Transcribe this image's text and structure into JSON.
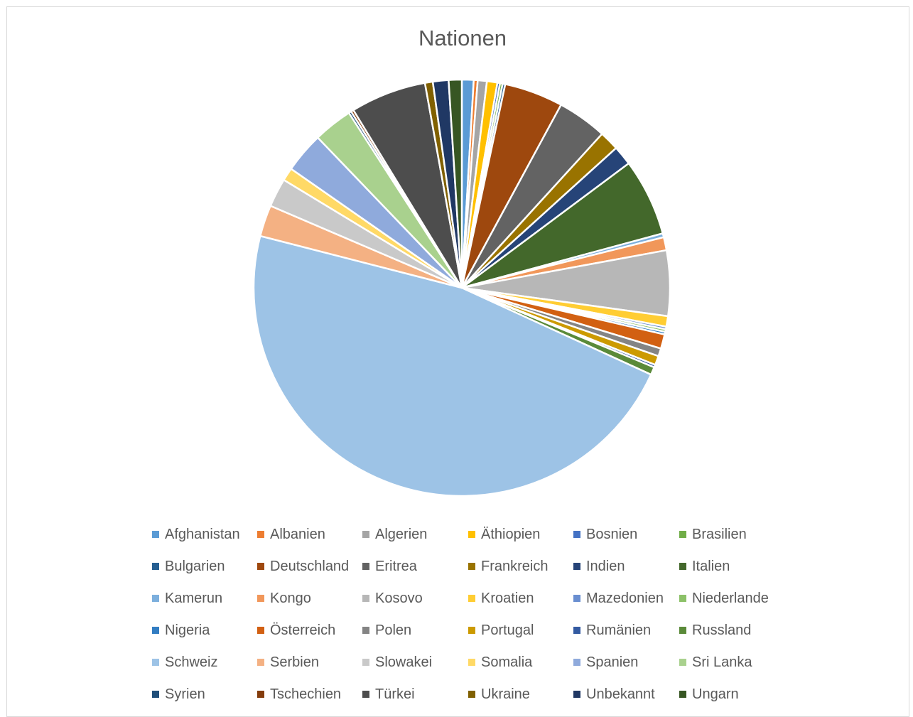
{
  "chart_data": {
    "type": "pie",
    "title": "Nationen",
    "legend_position": "bottom",
    "start_angle_deg": 0,
    "direction": "clockwise",
    "slices": [
      {
        "name": "Afghanistan",
        "value": 0.9,
        "color": "#5b9bd5"
      },
      {
        "name": "Albanien",
        "value": 0.3,
        "color": "#ed7d31"
      },
      {
        "name": "Algerien",
        "value": 0.7,
        "color": "#a5a5a5"
      },
      {
        "name": "Äthiopien",
        "value": 0.8,
        "color": "#ffc000"
      },
      {
        "name": "Bosnien",
        "value": 0.2,
        "color": "#4472c4"
      },
      {
        "name": "Brasilien",
        "value": 0.2,
        "color": "#70ad47"
      },
      {
        "name": "Bulgarien",
        "value": 0.2,
        "color": "#255e91"
      },
      {
        "name": "Deutschland",
        "value": 4.5,
        "color": "#9e480e"
      },
      {
        "name": "Eritrea",
        "value": 3.8,
        "color": "#636363"
      },
      {
        "name": "Frankreich",
        "value": 1.5,
        "color": "#997300"
      },
      {
        "name": "Indien",
        "value": 1.5,
        "color": "#264478"
      },
      {
        "name": "Italien",
        "value": 5.9,
        "color": "#43682b"
      },
      {
        "name": "Kamerun",
        "value": 0.3,
        "color": "#7cafdd"
      },
      {
        "name": "Kongo",
        "value": 1.0,
        "color": "#f1975a"
      },
      {
        "name": "Kosovo",
        "value": 5.0,
        "color": "#b7b7b7"
      },
      {
        "name": "Kroatien",
        "value": 0.8,
        "color": "#ffcd33"
      },
      {
        "name": "Mazedonien",
        "value": 0.2,
        "color": "#698ed0"
      },
      {
        "name": "Niederlande",
        "value": 0.2,
        "color": "#8cc168"
      },
      {
        "name": "Nigeria",
        "value": 0.2,
        "color": "#327dc2"
      },
      {
        "name": "Österreich",
        "value": 1.1,
        "color": "#d26012"
      },
      {
        "name": "Polen",
        "value": 0.6,
        "color": "#848484"
      },
      {
        "name": "Portugal",
        "value": 0.7,
        "color": "#cc9a00"
      },
      {
        "name": "Rumänien",
        "value": 0.2,
        "color": "#335aa1"
      },
      {
        "name": "Russland",
        "value": 0.6,
        "color": "#5a8a39"
      },
      {
        "name": "Schweiz",
        "value": 46.5,
        "color": "#9dc3e6"
      },
      {
        "name": "Serbien",
        "value": 2.4,
        "color": "#f4b183"
      },
      {
        "name": "Slowakei",
        "value": 2.2,
        "color": "#c9c9c9"
      },
      {
        "name": "Somalia",
        "value": 1.0,
        "color": "#ffd966"
      },
      {
        "name": "Spanien",
        "value": 3.1,
        "color": "#8faadc"
      },
      {
        "name": "Sri Lanka",
        "value": 3.0,
        "color": "#a9d18e"
      },
      {
        "name": "Syrien",
        "value": 0.2,
        "color": "#1f4e79"
      },
      {
        "name": "Tschechien",
        "value": 0.2,
        "color": "#843c0c"
      },
      {
        "name": "Türkei",
        "value": 5.8,
        "color": "#4d4d4d"
      },
      {
        "name": "Ukraine",
        "value": 0.6,
        "color": "#806000"
      },
      {
        "name": "Unbekannt",
        "value": 1.2,
        "color": "#203864"
      },
      {
        "name": "Ungarn",
        "value": 1.0,
        "color": "#375623"
      }
    ]
  }
}
